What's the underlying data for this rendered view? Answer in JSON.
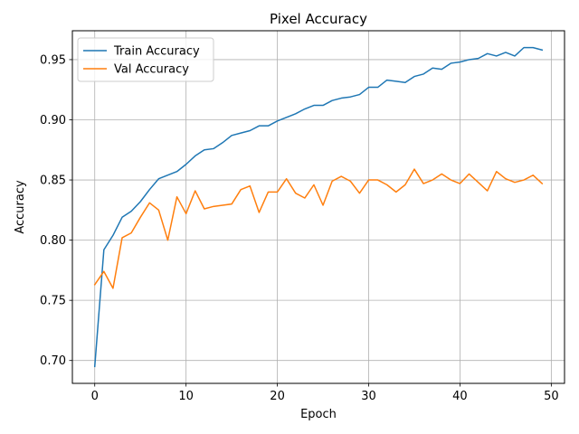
{
  "chart_data": {
    "type": "line",
    "title": "Pixel Accuracy",
    "xlabel": "Epoch",
    "ylabel": "Accuracy",
    "xlim": [
      -2.45,
      51.45
    ],
    "ylim": [
      0.681,
      0.974
    ],
    "xticks": [
      0,
      10,
      20,
      30,
      40,
      50
    ],
    "yticks": [
      0.7,
      0.75,
      0.8,
      0.85,
      0.9,
      0.95
    ],
    "xtick_labels": [
      "0",
      "10",
      "20",
      "30",
      "40",
      "50"
    ],
    "ytick_labels": [
      "0.70",
      "0.75",
      "0.80",
      "0.85",
      "0.90",
      "0.95"
    ],
    "grid": true,
    "legend_position": "upper-left",
    "x": [
      0,
      1,
      2,
      3,
      4,
      5,
      6,
      7,
      8,
      9,
      10,
      11,
      12,
      13,
      14,
      15,
      16,
      17,
      18,
      19,
      20,
      21,
      22,
      23,
      24,
      25,
      26,
      27,
      28,
      29,
      30,
      31,
      32,
      33,
      34,
      35,
      36,
      37,
      38,
      39,
      40,
      41,
      42,
      43,
      44,
      45,
      46,
      47,
      48,
      49
    ],
    "series": [
      {
        "name": "Train Accuracy",
        "color": "#1f77b4",
        "values": [
          0.695,
          0.792,
          0.804,
          0.819,
          0.824,
          0.832,
          0.842,
          0.851,
          0.854,
          0.857,
          0.863,
          0.87,
          0.875,
          0.876,
          0.881,
          0.887,
          0.889,
          0.891,
          0.895,
          0.895,
          0.899,
          0.902,
          0.905,
          0.909,
          0.912,
          0.912,
          0.916,
          0.918,
          0.919,
          0.921,
          0.927,
          0.927,
          0.933,
          0.932,
          0.931,
          0.936,
          0.938,
          0.943,
          0.942,
          0.947,
          0.948,
          0.95,
          0.951,
          0.955,
          0.953,
          0.956,
          0.953,
          0.96,
          0.96,
          0.958
        ]
      },
      {
        "name": "Val Accuracy",
        "color": "#ff7f0e",
        "values": [
          0.763,
          0.774,
          0.76,
          0.802,
          0.806,
          0.819,
          0.831,
          0.825,
          0.8,
          0.836,
          0.822,
          0.841,
          0.826,
          0.828,
          0.829,
          0.83,
          0.842,
          0.845,
          0.823,
          0.84,
          0.84,
          0.851,
          0.839,
          0.835,
          0.846,
          0.829,
          0.849,
          0.853,
          0.849,
          0.839,
          0.85,
          0.85,
          0.846,
          0.84,
          0.846,
          0.859,
          0.847,
          0.85,
          0.855,
          0.85,
          0.847,
          0.855,
          0.848,
          0.841,
          0.857,
          0.851,
          0.848,
          0.85,
          0.854,
          0.847
        ]
      }
    ]
  }
}
